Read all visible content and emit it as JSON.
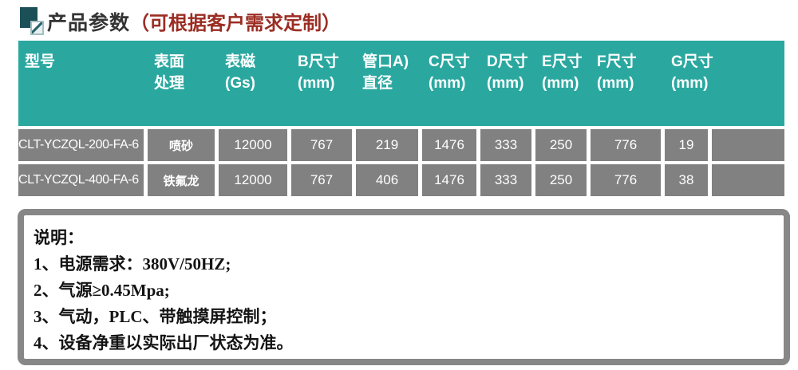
{
  "title": {
    "text": "产品参数",
    "subtitle": "（可根据客户需求定制）",
    "icon": "overlapping-squares-icon"
  },
  "colors": {
    "header_bg": "#2aa8a0",
    "cell_bg": "#818181",
    "title_text": "#333333",
    "subtitle_red": "#9b2d23",
    "notes_border": "#878787",
    "icon_dark_teal": "#1c5059"
  },
  "table": {
    "columns": [
      {
        "line1": "型号",
        "line2": ""
      },
      {
        "line1": "表面",
        "line2": "处理"
      },
      {
        "line1": "表磁",
        "line2": "(Gs)"
      },
      {
        "line1": "B尺寸",
        "line2": "(mm)"
      },
      {
        "line1": "管口A)",
        "line2": "直径"
      },
      {
        "line1": "C尺寸",
        "line2": "(mm)"
      },
      {
        "line1": "D尺寸",
        "line2": "(mm)"
      },
      {
        "line1": "E尺寸",
        "line2": "(mm)"
      },
      {
        "line1": "F尺寸",
        "line2": "(mm)"
      },
      {
        "line1": "G尺寸",
        "line2": "(mm)"
      },
      {
        "line1": "",
        "line2": ""
      }
    ],
    "rows": [
      {
        "cells": [
          "CLT-YCZQL-200-FA-6",
          "喷砂",
          "12000",
          "767",
          "219",
          "1476",
          "333",
          "250",
          "776",
          "19",
          ""
        ]
      },
      {
        "cells": [
          "CLT-YCZQL-400-FA-6",
          "铁氟龙",
          "12000",
          "767",
          "406",
          "1476",
          "333",
          "250",
          "776",
          "38",
          ""
        ]
      }
    ]
  },
  "notes": {
    "heading": "说明：",
    "items": [
      "1、电源需求：380V/50HZ;",
      "2、气源≥0.45Mpa;",
      "3、气动，PLC、带触摸屏控制；",
      "4、设备净重以实际出厂状态为准。"
    ]
  }
}
